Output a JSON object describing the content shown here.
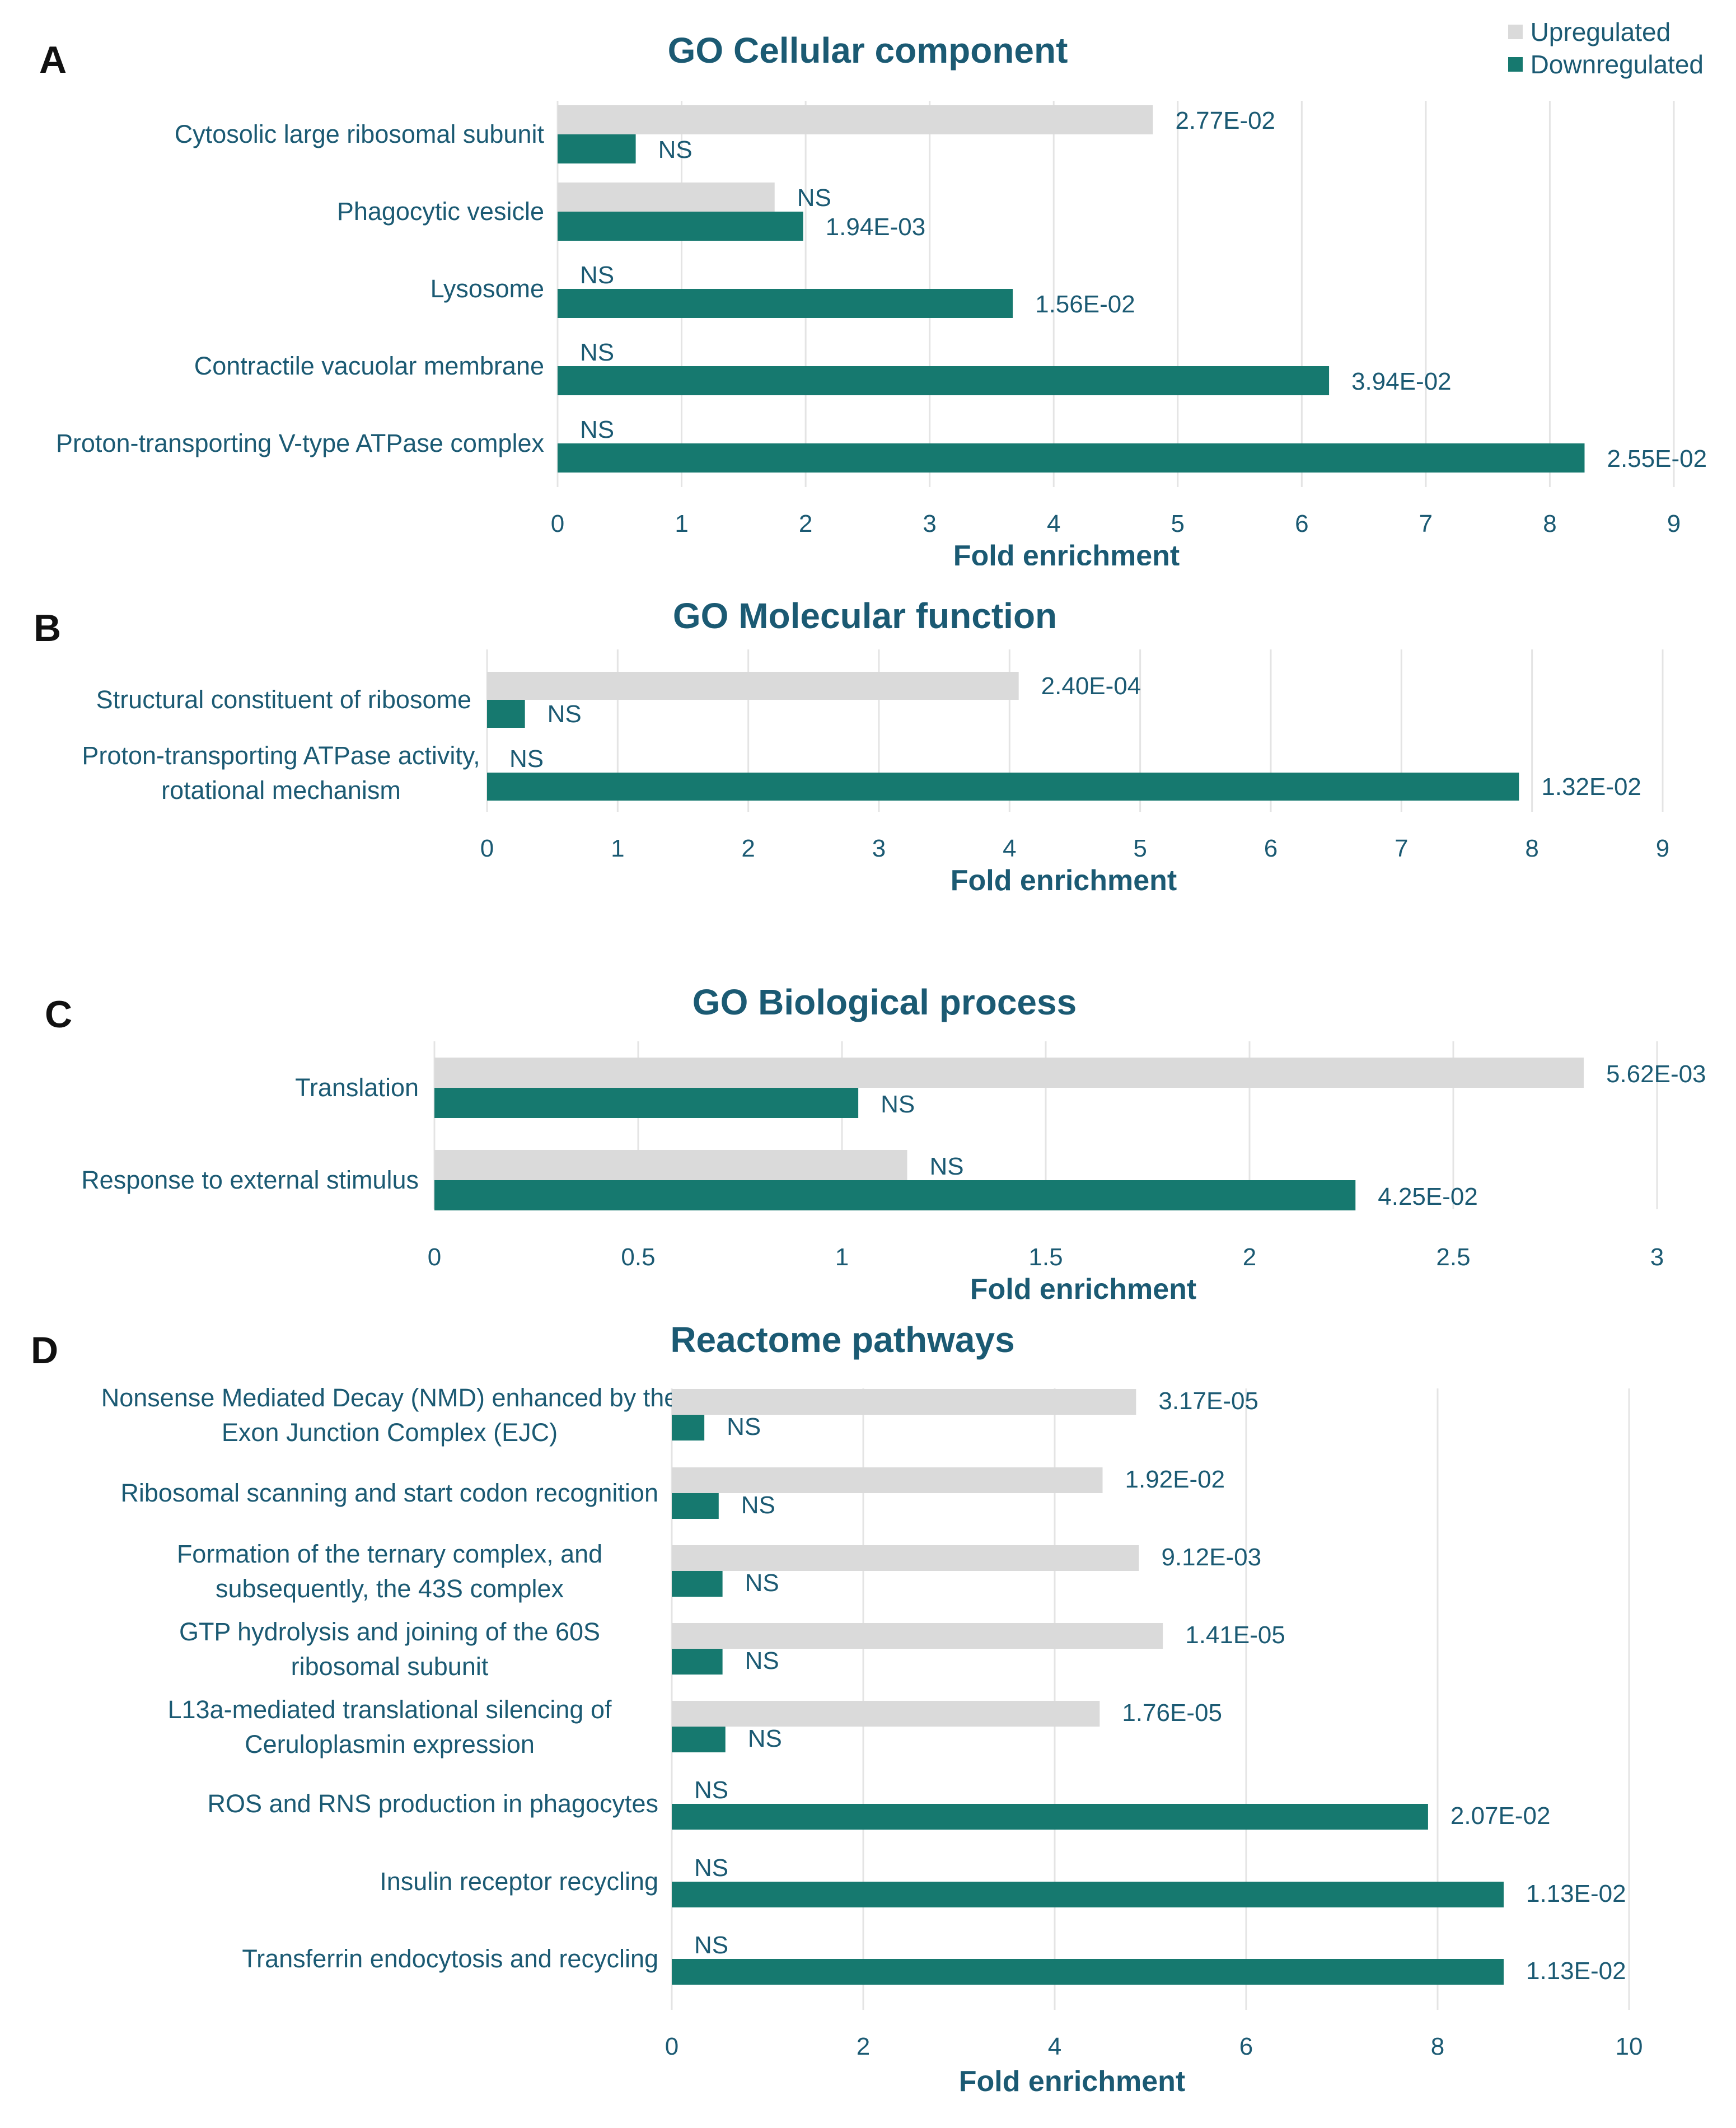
{
  "legend": {
    "upregulated_label": "Upregulated",
    "downregulated_label": "Downregulated"
  },
  "colors": {
    "upregulated": "#dadada",
    "downregulated": "#16796f",
    "title": "#1b5a73",
    "text": "#1b5a73",
    "grid": "#e4e4e4"
  },
  "chart_data": [
    {
      "panel": "A",
      "type": "bar",
      "orientation": "horizontal",
      "title": "GO Cellular component",
      "xlabel": "Fold enrichment",
      "ylabel": "",
      "xlim": [
        0,
        9
      ],
      "xticks": [
        "0",
        "1",
        "2",
        "3",
        "4",
        "5",
        "6",
        "7",
        "8",
        "9"
      ],
      "grid": "vertical",
      "categories": [
        "Cytosolic large ribosomal subunit",
        "Phagocytic vesicle",
        "Lysosome",
        "Contractile vacuolar membrane",
        "Proton-transporting V-type ATPase complex"
      ],
      "series": [
        {
          "name": "Upregulated",
          "values": [
            4.8,
            1.75,
            0,
            0,
            0
          ],
          "labels": [
            "2.77E-02",
            "NS",
            "NS",
            "NS",
            "NS"
          ]
        },
        {
          "name": "Downregulated",
          "values": [
            0.63,
            1.98,
            3.67,
            6.22,
            8.28
          ],
          "labels": [
            "NS",
            "1.94E-03",
            "1.56E-02",
            "3.94E-02",
            "2.55E-02"
          ]
        }
      ]
    },
    {
      "panel": "B",
      "type": "bar",
      "orientation": "horizontal",
      "title": "GO Molecular function",
      "xlabel": "Fold enrichment",
      "ylabel": "",
      "xlim": [
        0,
        9
      ],
      "xticks": [
        "0",
        "1",
        "2",
        "3",
        "4",
        "5",
        "6",
        "7",
        "8",
        "9"
      ],
      "grid": "vertical",
      "categories": [
        "Structural constituent of ribosome",
        "Proton-transporting ATPase activity, rotational mechanism"
      ],
      "series": [
        {
          "name": "Upregulated",
          "values": [
            4.07,
            0
          ],
          "labels": [
            "2.40E-04",
            "NS"
          ]
        },
        {
          "name": "Downregulated",
          "values": [
            0.29,
            7.9
          ],
          "labels": [
            "NS",
            "1.32E-02"
          ]
        }
      ]
    },
    {
      "panel": "C",
      "type": "bar",
      "orientation": "horizontal",
      "title": "GO Biological process",
      "xlabel": "Fold enrichment",
      "ylabel": "",
      "xlim": [
        0,
        3
      ],
      "xticks": [
        "0",
        "0.5",
        "1",
        "1.5",
        "2",
        "2.5",
        "3"
      ],
      "grid": "vertical",
      "categories": [
        "Translation",
        "Response to external stimulus"
      ],
      "series": [
        {
          "name": "Upregulated",
          "values": [
            2.82,
            1.16
          ],
          "labels": [
            "5.62E-03",
            "NS"
          ]
        },
        {
          "name": "Downregulated",
          "values": [
            1.04,
            2.26
          ],
          "labels": [
            "NS",
            "4.25E-02"
          ]
        }
      ]
    },
    {
      "panel": "D",
      "type": "bar",
      "orientation": "horizontal",
      "title": "Reactome pathways",
      "xlabel": "Fold enrichment",
      "ylabel": "",
      "xlim": [
        0,
        10
      ],
      "xticks": [
        "0",
        "2",
        "4",
        "6",
        "8",
        "10"
      ],
      "grid": "vertical",
      "categories": [
        "Nonsense Mediated Decay (NMD) enhanced by the Exon Junction Complex (EJC)",
        "Ribosomal scanning and start codon recognition",
        "Formation of the ternary complex, and subsequently, the 43S complex",
        "GTP hydrolysis and joining of the 60S ribosomal subunit",
        "L13a-mediated translational silencing of Ceruloplasmin expression",
        "ROS and RNS production in phagocytes",
        "Insulin receptor recycling",
        "Transferrin endocytosis and recycling"
      ],
      "series": [
        {
          "name": "Upregulated",
          "values": [
            4.85,
            4.5,
            4.88,
            5.13,
            4.47,
            0,
            0,
            0
          ],
          "labels": [
            "3.17E-05",
            "1.92E-02",
            "9.12E-03",
            "1.41E-05",
            "1.76E-05",
            "NS",
            "NS",
            "NS"
          ]
        },
        {
          "name": "Downregulated",
          "values": [
            0.34,
            0.49,
            0.53,
            0.53,
            0.56,
            7.9,
            8.69,
            8.69
          ],
          "labels": [
            "NS",
            "NS",
            "NS",
            "NS",
            "NS",
            "2.07E-02",
            "1.13E-02",
            "1.13E-02"
          ]
        }
      ]
    }
  ]
}
